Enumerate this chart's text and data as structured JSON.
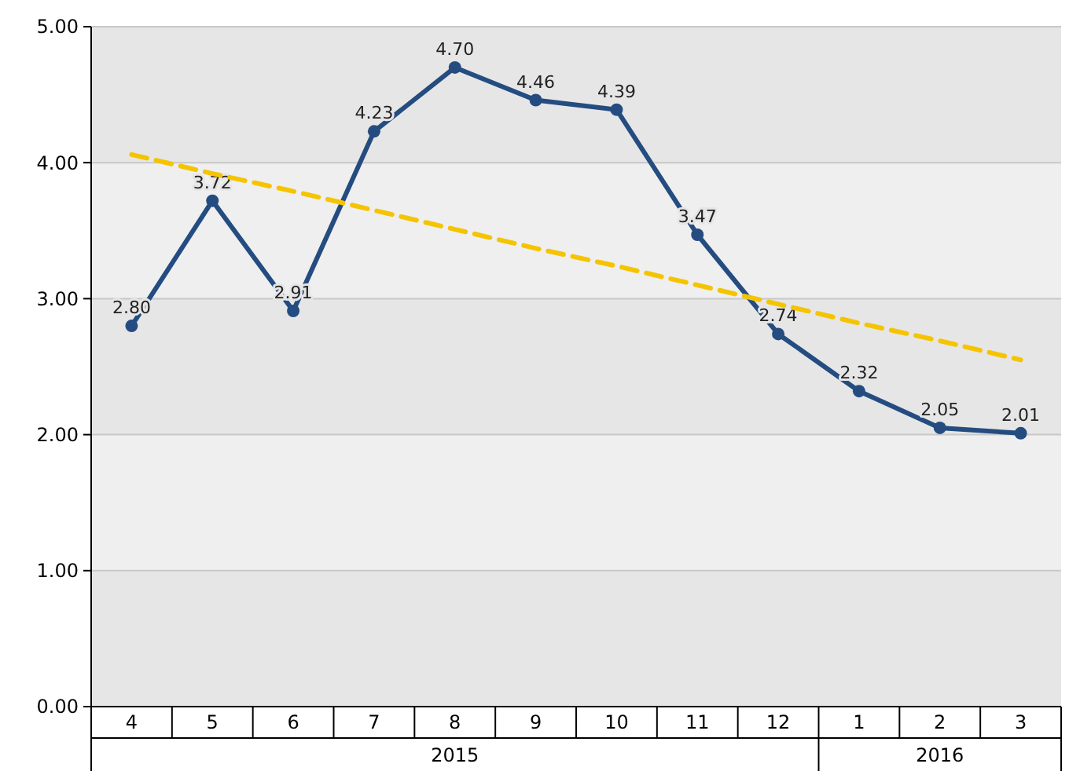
{
  "chart_data": {
    "type": "line",
    "categories": [
      "4",
      "5",
      "6",
      "7",
      "8",
      "9",
      "10",
      "11",
      "12",
      "1",
      "2",
      "3"
    ],
    "annotations": [
      "2015",
      "2016"
    ],
    "series": [
      {
        "color": "#244c80",
        "values": [
          2.8,
          3.72,
          2.91,
          4.23,
          4.7,
          4.46,
          4.39,
          3.47,
          2.74,
          2.32,
          2.05,
          2.01
        ],
        "value_labels": [
          "2.80",
          "3.72",
          "2.91",
          "4.23",
          "4.70",
          "4.46",
          "4.39",
          "3.47",
          "2.74",
          "2.32",
          "2.05",
          "2.01"
        ],
        "marker": "circle",
        "line_style": "solid"
      },
      {
        "type": "line",
        "color": "#f5c400",
        "values": [
          4.06,
          3.92,
          3.79,
          3.65,
          3.51,
          3.37,
          3.24,
          3.1,
          2.96,
          2.82,
          2.69,
          2.55
        ],
        "marker": "none",
        "line_style": "dashed"
      }
    ],
    "ylim": [
      0,
      5
    ],
    "yticks": [
      {
        "value": 0,
        "label": "0.00"
      },
      {
        "value": 1,
        "label": "1.00"
      },
      {
        "value": 2,
        "label": "2.00"
      },
      {
        "value": 3,
        "label": "3.00"
      },
      {
        "value": 4,
        "label": "4.00"
      },
      {
        "value": 5,
        "label": "5.00"
      }
    ],
    "grid": "y"
  }
}
